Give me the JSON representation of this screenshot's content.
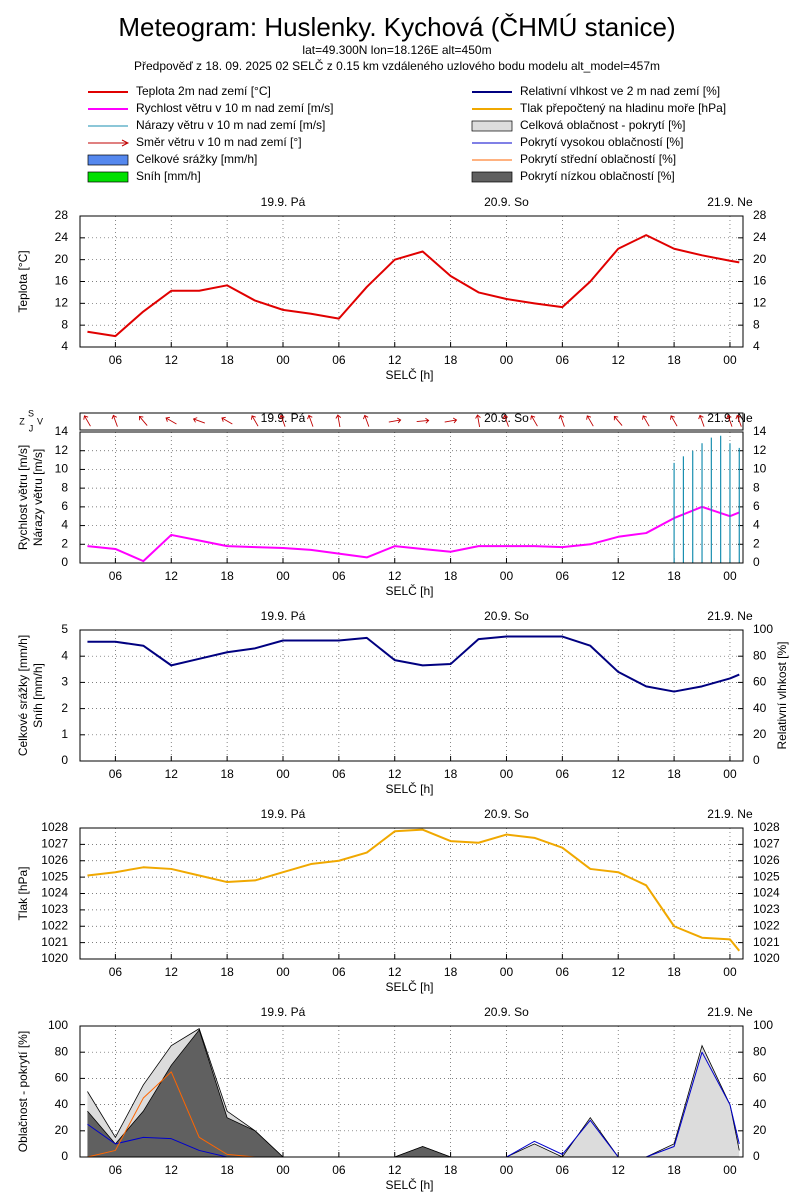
{
  "title": "Meteogram: Huslenky. Kychová (ČHMÚ stanice)",
  "subtitle": "lat=49.300N lon=18.126E alt=450m",
  "forecast_note": "Předpověď z 18. 09. 2025 02 SELČ z 0.15 km vzdáleného uzlového bodu modelu alt_model=457m",
  "chart_data": [
    {
      "type": "line",
      "ylabel": "Teplota [°C]",
      "xlabel": "SELČ [h]",
      "grid": true,
      "xlim": [
        2.2,
        73.4
      ],
      "xticks": [
        {
          "value": 6,
          "label": "06"
        },
        {
          "value": 12,
          "label": "12"
        },
        {
          "value": 18,
          "label": "18"
        },
        {
          "value": 24,
          "label": "00"
        },
        {
          "value": 30,
          "label": "06"
        },
        {
          "value": 36,
          "label": "12"
        },
        {
          "value": 42,
          "label": "18"
        },
        {
          "value": 48,
          "label": "00"
        },
        {
          "value": 54,
          "label": "06"
        },
        {
          "value": 60,
          "label": "12"
        },
        {
          "value": 66,
          "label": "18"
        },
        {
          "value": 72,
          "label": "00"
        }
      ],
      "day_ticks": [
        {
          "value": 24,
          "label": "19.9. Pá"
        },
        {
          "value": 48,
          "label": "20.9. So"
        },
        {
          "value": 72,
          "label": "21.9. Ne"
        }
      ],
      "ylim": [
        4,
        28
      ],
      "yticks": [
        4,
        8,
        12,
        16,
        20,
        24,
        28
      ],
      "y2lim": [
        4,
        28
      ],
      "y2ticks": [
        4,
        8,
        12,
        16,
        20,
        24,
        28
      ],
      "x": [
        3,
        6,
        9,
        12,
        15,
        18,
        21,
        24,
        27,
        30,
        33,
        36,
        39,
        42,
        45,
        48,
        51,
        54,
        57,
        60,
        63,
        66,
        69,
        72,
        73
      ],
      "series": [
        {
          "name": "Teplota 2m nad zemí [°C]",
          "color": "#e00000",
          "kind": "line",
          "values": [
            6.8,
            6.0,
            10.5,
            14.3,
            14.3,
            15.3,
            12.5,
            10.8,
            10.1,
            9.2,
            15,
            20,
            21.5,
            17,
            14,
            12.8,
            12,
            11.3,
            16,
            22,
            24.5,
            22,
            20.8,
            19.8,
            19.5
          ]
        }
      ]
    },
    {
      "type": "line",
      "ylabel": [
        "Rychlost větru [m/s]",
        "Nárazy větru [m/s]"
      ],
      "xlabel": "SELČ [h]",
      "grid": true,
      "direction_labels": [
        "Z",
        "S",
        "J",
        "V"
      ],
      "xlim": [
        2.2,
        73.4
      ],
      "xticks": [
        {
          "value": 6,
          "label": "06"
        },
        {
          "value": 12,
          "label": "12"
        },
        {
          "value": 18,
          "label": "18"
        },
        {
          "value": 24,
          "label": "00"
        },
        {
          "value": 30,
          "label": "06"
        },
        {
          "value": 36,
          "label": "12"
        },
        {
          "value": 42,
          "label": "18"
        },
        {
          "value": 48,
          "label": "00"
        },
        {
          "value": 54,
          "label": "06"
        },
        {
          "value": 60,
          "label": "12"
        },
        {
          "value": 66,
          "label": "18"
        },
        {
          "value": 72,
          "label": "00"
        }
      ],
      "day_ticks": [
        {
          "value": 24,
          "label": "19.9. Pá"
        },
        {
          "value": 48,
          "label": "20.9. So"
        },
        {
          "value": 72,
          "label": "21.9. Ne"
        }
      ],
      "ylim": [
        0,
        14
      ],
      "yticks": [
        0,
        2,
        4,
        6,
        8,
        10,
        12,
        14
      ],
      "y2lim": [
        0,
        14
      ],
      "y2ticks": [
        0,
        2,
        4,
        6,
        8,
        10,
        12,
        14
      ],
      "x": [
        3,
        6,
        9,
        12,
        15,
        18,
        21,
        24,
        27,
        30,
        33,
        36,
        39,
        42,
        45,
        48,
        51,
        54,
        57,
        60,
        63,
        66,
        69,
        72,
        73
      ],
      "series": [
        {
          "name": "Rychlost větru v 10 m nad zemí [m/s]",
          "color": "#ff00ff",
          "kind": "line",
          "values": [
            1.8,
            1.5,
            0.2,
            3.0,
            2.4,
            1.8,
            1.7,
            1.6,
            1.4,
            1.0,
            0.6,
            1.8,
            1.5,
            1.2,
            1.8,
            1.8,
            1.8,
            1.7,
            2.0,
            2.8,
            3.2,
            4.8,
            6.0,
            5.0,
            5.4
          ]
        },
        {
          "name": "Nárazy větru v 10 m nad zemí [m/s]",
          "color": "#1a8fb0",
          "kind": "spike",
          "x": [
            66,
            67,
            68,
            69,
            70,
            71,
            72,
            73
          ],
          "values": [
            10.7,
            11.4,
            12.0,
            12.8,
            13.4,
            13.6,
            12.8,
            12.3
          ]
        },
        {
          "name": "Směr větru v 10 m nad zemí [°]",
          "color": "#c00000",
          "kind": "arrow",
          "values": [
            330,
            340,
            320,
            300,
            290,
            300,
            330,
            340,
            340,
            350,
            340,
            80,
            85,
            80,
            350,
            340,
            330,
            340,
            330,
            320,
            330,
            330,
            340,
            340,
            340
          ]
        }
      ]
    },
    {
      "type": "line",
      "ylabel": [
        "Celkové srážky [mm/h]",
        "Sníh [mm/h]"
      ],
      "y2label": "Relativní vlhkost [%]",
      "xlabel": "SELČ [h]",
      "grid": true,
      "xlim": [
        2.2,
        73.4
      ],
      "xticks": [
        {
          "value": 6,
          "label": "06"
        },
        {
          "value": 12,
          "label": "12"
        },
        {
          "value": 18,
          "label": "18"
        },
        {
          "value": 24,
          "label": "00"
        },
        {
          "value": 30,
          "label": "06"
        },
        {
          "value": 36,
          "label": "12"
        },
        {
          "value": 42,
          "label": "18"
        },
        {
          "value": 48,
          "label": "00"
        },
        {
          "value": 54,
          "label": "06"
        },
        {
          "value": 60,
          "label": "12"
        },
        {
          "value": 66,
          "label": "18"
        },
        {
          "value": 72,
          "label": "00"
        }
      ],
      "day_ticks": [
        {
          "value": 24,
          "label": "19.9. Pá"
        },
        {
          "value": 48,
          "label": "20.9. So"
        },
        {
          "value": 72,
          "label": "21.9. Ne"
        }
      ],
      "ylim": [
        0,
        5
      ],
      "yticks": [
        0,
        1,
        2,
        3,
        4,
        5
      ],
      "y2lim": [
        0,
        100
      ],
      "y2ticks": [
        0,
        20,
        40,
        60,
        80,
        100
      ],
      "x": [
        3,
        6,
        9,
        12,
        15,
        18,
        21,
        24,
        27,
        30,
        33,
        36,
        39,
        42,
        45,
        48,
        51,
        54,
        57,
        60,
        63,
        66,
        69,
        72,
        73
      ],
      "series": [
        {
          "name": "Celkové srážky [mm/h]",
          "color": "#5588ee",
          "kind": "bar",
          "values": [
            0,
            0,
            0,
            0,
            0,
            0,
            0,
            0,
            0,
            0,
            0,
            0,
            0,
            0,
            0,
            0,
            0,
            0,
            0,
            0,
            0,
            0,
            0,
            0,
            0
          ]
        },
        {
          "name": "Sníh [mm/h]",
          "color": "#00e000",
          "kind": "bar",
          "values": [
            0,
            0,
            0,
            0,
            0,
            0,
            0,
            0,
            0,
            0,
            0,
            0,
            0,
            0,
            0,
            0,
            0,
            0,
            0,
            0,
            0,
            0,
            0,
            0,
            0
          ]
        },
        {
          "name": "Relativní vlhkost ve 2 m nad zemí [%]",
          "color": "#000080",
          "kind": "line",
          "axis": "y2",
          "values": [
            91,
            91,
            88,
            73,
            78,
            83,
            86,
            92,
            92,
            92,
            94,
            77,
            73,
            74,
            93,
            95,
            95,
            95,
            88,
            68,
            57,
            53,
            57,
            63,
            66
          ]
        }
      ]
    },
    {
      "type": "line",
      "ylabel": "Tlak [hPa]",
      "xlabel": "SELČ [h]",
      "grid": true,
      "xlim": [
        2.2,
        73.4
      ],
      "xticks": [
        {
          "value": 6,
          "label": "06"
        },
        {
          "value": 12,
          "label": "12"
        },
        {
          "value": 18,
          "label": "18"
        },
        {
          "value": 24,
          "label": "00"
        },
        {
          "value": 30,
          "label": "06"
        },
        {
          "value": 36,
          "label": "12"
        },
        {
          "value": 42,
          "label": "18"
        },
        {
          "value": 48,
          "label": "00"
        },
        {
          "value": 54,
          "label": "06"
        },
        {
          "value": 60,
          "label": "12"
        },
        {
          "value": 66,
          "label": "18"
        },
        {
          "value": 72,
          "label": "00"
        }
      ],
      "day_ticks": [
        {
          "value": 24,
          "label": "19.9. Pá"
        },
        {
          "value": 48,
          "label": "20.9. So"
        },
        {
          "value": 72,
          "label": "21.9. Ne"
        }
      ],
      "ylim": [
        1020,
        1028
      ],
      "yticks": [
        1020,
        1021,
        1022,
        1023,
        1024,
        1025,
        1026,
        1027,
        1028
      ],
      "y2lim": [
        1020,
        1028
      ],
      "y2ticks": [
        1020,
        1021,
        1022,
        1023,
        1024,
        1025,
        1026,
        1027,
        1028
      ],
      "x": [
        3,
        6,
        9,
        12,
        15,
        18,
        21,
        24,
        27,
        30,
        33,
        36,
        39,
        42,
        45,
        48,
        51,
        54,
        57,
        60,
        63,
        66,
        69,
        72,
        73
      ],
      "series": [
        {
          "name": "Tlak přepočtený na hladinu moře [hPa]",
          "color": "#f0a800",
          "kind": "line",
          "values": [
            1025.1,
            1025.3,
            1025.6,
            1025.5,
            1025.1,
            1024.7,
            1024.8,
            1025.3,
            1025.8,
            1026.0,
            1026.5,
            1027.8,
            1027.9,
            1027.2,
            1027.1,
            1027.6,
            1027.4,
            1026.8,
            1025.5,
            1025.3,
            1024.5,
            1022.0,
            1021.3,
            1021.2,
            1020.5
          ]
        }
      ]
    },
    {
      "type": "line",
      "ylabel": "Oblačnost - pokrytí [%]",
      "xlabel": "SELČ [h]",
      "grid": true,
      "xlim": [
        2.2,
        73.4
      ],
      "xticks": [
        {
          "value": 6,
          "label": "06"
        },
        {
          "value": 12,
          "label": "12"
        },
        {
          "value": 18,
          "label": "18"
        },
        {
          "value": 24,
          "label": "00"
        },
        {
          "value": 30,
          "label": "06"
        },
        {
          "value": 36,
          "label": "12"
        },
        {
          "value": 42,
          "label": "18"
        },
        {
          "value": 48,
          "label": "00"
        },
        {
          "value": 54,
          "label": "06"
        },
        {
          "value": 60,
          "label": "12"
        },
        {
          "value": 66,
          "label": "18"
        },
        {
          "value": 72,
          "label": "00"
        }
      ],
      "day_ticks": [
        {
          "value": 24,
          "label": "19.9. Pá"
        },
        {
          "value": 48,
          "label": "20.9. So"
        },
        {
          "value": 72,
          "label": "21.9. Ne"
        }
      ],
      "ylim": [
        0,
        100
      ],
      "yticks": [
        0,
        20,
        40,
        60,
        80,
        100
      ],
      "y2lim": [
        0,
        100
      ],
      "y2ticks": [
        0,
        20,
        40,
        60,
        80,
        100
      ],
      "x": [
        3,
        6,
        9,
        12,
        15,
        18,
        21,
        24,
        27,
        30,
        33,
        36,
        39,
        42,
        45,
        48,
        51,
        54,
        57,
        60,
        63,
        66,
        69,
        72,
        73
      ],
      "series": [
        {
          "name": "Celková oblačnost - pokrytí [%]",
          "color": "#dcdcdc",
          "kind": "area",
          "values": [
            50,
            15,
            55,
            85,
            98,
            35,
            20,
            0,
            0,
            0,
            0,
            0,
            8,
            0,
            0,
            0,
            10,
            0,
            30,
            0,
            0,
            10,
            85,
            40,
            5
          ]
        },
        {
          "name": "Pokrytí nízkou oblačností [%]",
          "color": "#606060",
          "kind": "area",
          "values": [
            35,
            10,
            35,
            70,
            97,
            30,
            20,
            0,
            0,
            0,
            0,
            0,
            8,
            0,
            0,
            0,
            0,
            0,
            0,
            0,
            0,
            0,
            0,
            0,
            0
          ]
        },
        {
          "name": "Pokrytí vysokou oblačností [%]",
          "color": "#0000cc",
          "kind": "thin",
          "values": [
            25,
            10,
            15,
            14,
            5,
            0,
            0,
            0,
            0,
            0,
            0,
            0,
            0,
            0,
            0,
            0,
            12,
            2,
            28,
            0,
            0,
            8,
            80,
            40,
            10
          ]
        },
        {
          "name": "Pokrytí střední oblačností [%]",
          "color": "#ff6600",
          "kind": "thin",
          "values": [
            0,
            5,
            45,
            65,
            15,
            2,
            0,
            0,
            0,
            0,
            0,
            0,
            0,
            0,
            0,
            0,
            0,
            0,
            0,
            0,
            0,
            0,
            0,
            0,
            0
          ]
        }
      ]
    }
  ]
}
